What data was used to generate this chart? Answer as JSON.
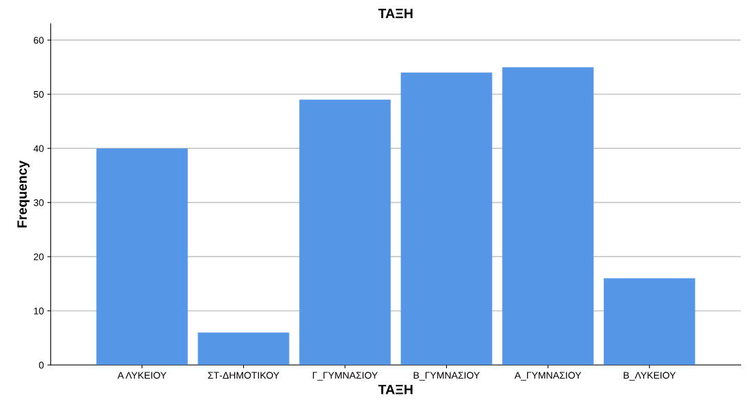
{
  "chart_data": {
    "type": "bar",
    "title": "ΤΑΞΗ",
    "xlabel": "ΤΑΞΗ",
    "ylabel": "Frequency",
    "categories": [
      "Α ΛΥΚΕΙΟΥ",
      "ΣΤ-ΔΗΜΟΤΙΚΟΥ",
      "Γ_ΓΥΜΝΑΣΙΟΥ",
      "Β_ΓΥΜΝΑΣΙΟΥ",
      "Α_ΓΥΜΝΑΣΙΟΥ",
      "Β_ΛΥΚΕΙΟΥ"
    ],
    "values": [
      40,
      6,
      49,
      54,
      55,
      16
    ],
    "color": "#5596e6",
    "ylim": [
      0,
      63
    ],
    "yticks": [
      0,
      10,
      20,
      30,
      40,
      50,
      60
    ],
    "grid": "y"
  }
}
